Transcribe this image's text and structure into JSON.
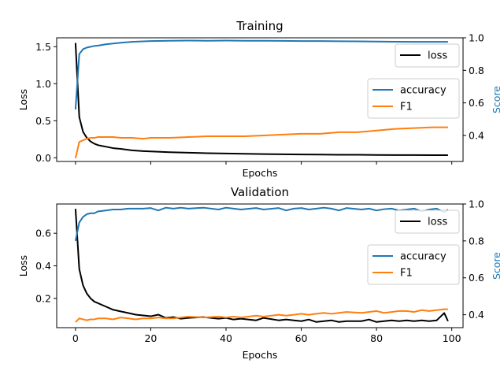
{
  "chart_data": [
    {
      "type": "line",
      "title": "Training",
      "xlabel": "Epochs",
      "ylabel": "Loss",
      "y2label": "Score",
      "xlim": [
        -5,
        103
      ],
      "ylim": [
        -0.05,
        1.62
      ],
      "y2lim": [
        0.24,
        1.0
      ],
      "xticks": [],
      "yticks": [
        0.0,
        0.5,
        1.0,
        1.5
      ],
      "ytick_labels": [
        "0.0",
        "0.5",
        "1.0",
        "1.5"
      ],
      "y2ticks": [
        0.4,
        0.6,
        0.8,
        1.0
      ],
      "y2tick_labels": [
        "0.4",
        "0.6",
        "0.8",
        "1.0"
      ],
      "show_xtick_labels": false,
      "legend_loss": {
        "placement": "top-right",
        "entries": [
          {
            "label": "loss",
            "color": "#000000"
          }
        ]
      },
      "legend_score": {
        "placement": "center-right",
        "entries": [
          {
            "label": "accuracy",
            "color": "#1f77b4"
          },
          {
            "label": "F1",
            "color": "#ff7f0e"
          }
        ]
      },
      "series": [
        {
          "name": "loss",
          "axis": "left",
          "color": "#000000",
          "x": [
            0,
            1,
            2,
            3,
            4,
            5,
            6,
            8,
            10,
            12,
            15,
            18,
            20,
            25,
            30,
            35,
            40,
            45,
            50,
            55,
            60,
            65,
            70,
            75,
            80,
            85,
            90,
            95,
            99
          ],
          "y": [
            1.55,
            0.55,
            0.35,
            0.27,
            0.22,
            0.19,
            0.17,
            0.15,
            0.13,
            0.12,
            0.1,
            0.09,
            0.085,
            0.075,
            0.068,
            0.062,
            0.058,
            0.054,
            0.05,
            0.047,
            0.045,
            0.043,
            0.041,
            0.04,
            0.038,
            0.037,
            0.036,
            0.035,
            0.035
          ]
        },
        {
          "name": "accuracy",
          "axis": "right",
          "color": "#1f77b4",
          "x": [
            0,
            1,
            2,
            3,
            4,
            5,
            6,
            8,
            10,
            12,
            15,
            18,
            20,
            25,
            30,
            35,
            40,
            45,
            50,
            55,
            60,
            65,
            70,
            75,
            80,
            85,
            90,
            95,
            99
          ],
          "y": [
            0.56,
            0.9,
            0.93,
            0.94,
            0.945,
            0.95,
            0.952,
            0.96,
            0.965,
            0.97,
            0.975,
            0.978,
            0.98,
            0.982,
            0.983,
            0.982,
            0.983,
            0.982,
            0.982,
            0.981,
            0.98,
            0.98,
            0.979,
            0.978,
            0.977,
            0.976,
            0.975,
            0.975,
            0.975
          ]
        },
        {
          "name": "F1",
          "axis": "right",
          "color": "#ff7f0e",
          "x": [
            0,
            1,
            2,
            3,
            4,
            5,
            6,
            8,
            10,
            12,
            15,
            18,
            20,
            25,
            30,
            35,
            40,
            45,
            50,
            55,
            60,
            65,
            70,
            75,
            80,
            85,
            90,
            95,
            99
          ],
          "y": [
            0.26,
            0.36,
            0.37,
            0.38,
            0.385,
            0.385,
            0.39,
            0.39,
            0.39,
            0.385,
            0.385,
            0.38,
            0.385,
            0.385,
            0.39,
            0.395,
            0.395,
            0.395,
            0.4,
            0.405,
            0.41,
            0.41,
            0.42,
            0.42,
            0.43,
            0.44,
            0.445,
            0.45,
            0.45
          ]
        }
      ]
    },
    {
      "type": "line",
      "title": "Validation",
      "xlabel": "Epochs",
      "ylabel": "Loss",
      "y2label": "Score",
      "xlim": [
        -5,
        103
      ],
      "ylim": [
        0.02,
        0.78
      ],
      "y2lim": [
        0.33,
        1.0
      ],
      "xticks": [
        0,
        20,
        40,
        60,
        80,
        100
      ],
      "xtick_labels": [
        "0",
        "20",
        "40",
        "60",
        "80",
        "100"
      ],
      "yticks": [
        0.2,
        0.4,
        0.6
      ],
      "ytick_labels": [
        "0.2",
        "0.4",
        "0.6"
      ],
      "y2ticks": [
        0.4,
        0.6,
        0.8,
        1.0
      ],
      "y2tick_labels": [
        "0.4",
        "0.6",
        "0.8",
        "1.0"
      ],
      "show_xtick_labels": true,
      "legend_loss": {
        "placement": "top-right",
        "entries": [
          {
            "label": "loss",
            "color": "#000000"
          }
        ]
      },
      "legend_score": {
        "placement": "center-right",
        "entries": [
          {
            "label": "accuracy",
            "color": "#1f77b4"
          },
          {
            "label": "F1",
            "color": "#ff7f0e"
          }
        ]
      },
      "series": [
        {
          "name": "loss",
          "axis": "left",
          "color": "#000000",
          "x": [
            0,
            1,
            2,
            3,
            4,
            5,
            6,
            8,
            10,
            12,
            14,
            16,
            18,
            20,
            22,
            24,
            26,
            28,
            30,
            34,
            38,
            40,
            42,
            44,
            48,
            50,
            54,
            56,
            58,
            60,
            62,
            64,
            66,
            68,
            70,
            72,
            76,
            78,
            80,
            82,
            84,
            86,
            88,
            90,
            92,
            94,
            96,
            98,
            99
          ],
          "y": [
            0.75,
            0.38,
            0.28,
            0.23,
            0.2,
            0.18,
            0.17,
            0.15,
            0.13,
            0.12,
            0.11,
            0.1,
            0.095,
            0.09,
            0.1,
            0.08,
            0.085,
            0.075,
            0.08,
            0.085,
            0.075,
            0.08,
            0.07,
            0.075,
            0.065,
            0.08,
            0.065,
            0.07,
            0.065,
            0.06,
            0.07,
            0.055,
            0.06,
            0.065,
            0.055,
            0.06,
            0.06,
            0.07,
            0.055,
            0.06,
            0.065,
            0.06,
            0.065,
            0.06,
            0.065,
            0.06,
            0.065,
            0.11,
            0.06
          ]
        },
        {
          "name": "accuracy",
          "axis": "right",
          "color": "#1f77b4",
          "x": [
            0,
            1,
            2,
            3,
            4,
            5,
            6,
            8,
            10,
            12,
            14,
            16,
            18,
            20,
            22,
            24,
            26,
            28,
            30,
            34,
            38,
            40,
            42,
            44,
            48,
            50,
            54,
            56,
            58,
            60,
            62,
            64,
            66,
            68,
            70,
            72,
            76,
            78,
            80,
            82,
            84,
            86,
            88,
            90,
            92,
            94,
            96,
            98,
            99
          ],
          "y": [
            0.8,
            0.9,
            0.93,
            0.945,
            0.95,
            0.95,
            0.96,
            0.965,
            0.97,
            0.97,
            0.975,
            0.975,
            0.975,
            0.978,
            0.965,
            0.98,
            0.975,
            0.98,
            0.975,
            0.98,
            0.97,
            0.98,
            0.975,
            0.97,
            0.978,
            0.97,
            0.978,
            0.965,
            0.975,
            0.978,
            0.97,
            0.975,
            0.98,
            0.975,
            0.965,
            0.978,
            0.97,
            0.975,
            0.965,
            0.972,
            0.975,
            0.965,
            0.97,
            0.975,
            0.96,
            0.97,
            0.975,
            0.955,
            0.97
          ]
        },
        {
          "name": "F1",
          "axis": "right",
          "color": "#ff7f0e",
          "x": [
            0,
            1,
            2,
            3,
            4,
            5,
            6,
            8,
            10,
            12,
            14,
            16,
            18,
            20,
            22,
            24,
            26,
            28,
            30,
            34,
            38,
            40,
            42,
            44,
            48,
            50,
            54,
            56,
            58,
            60,
            62,
            64,
            66,
            68,
            70,
            72,
            76,
            78,
            80,
            82,
            84,
            86,
            88,
            90,
            92,
            94,
            96,
            98,
            99
          ],
          "y": [
            0.36,
            0.38,
            0.375,
            0.37,
            0.375,
            0.375,
            0.38,
            0.38,
            0.375,
            0.385,
            0.38,
            0.375,
            0.38,
            0.38,
            0.385,
            0.38,
            0.38,
            0.385,
            0.39,
            0.385,
            0.39,
            0.385,
            0.39,
            0.385,
            0.395,
            0.39,
            0.4,
            0.395,
            0.4,
            0.405,
            0.4,
            0.405,
            0.41,
            0.405,
            0.41,
            0.415,
            0.41,
            0.415,
            0.42,
            0.41,
            0.415,
            0.42,
            0.42,
            0.415,
            0.425,
            0.42,
            0.425,
            0.43,
            0.43
          ]
        }
      ]
    }
  ]
}
